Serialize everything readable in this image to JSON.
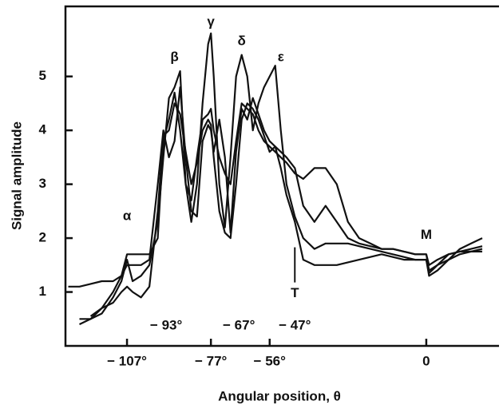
{
  "chart_data": {
    "type": "line",
    "x_label": "Angular position, θ",
    "y_label": "Signal amplitude",
    "x": [
      -128,
      -124,
      -120,
      -116,
      -112,
      -109,
      -107,
      -105,
      -102,
      -99,
      -96,
      -94,
      -92,
      -90,
      -88,
      -86,
      -84,
      -82,
      -80,
      -78,
      -77,
      -76,
      -74,
      -72,
      -70,
      -68,
      -66,
      -64,
      -62,
      -60,
      -58,
      -56,
      -54,
      -52,
      -50,
      -47,
      -44,
      -40,
      -36,
      -32,
      -28,
      -24,
      -20,
      -16,
      -12,
      -8,
      -4,
      -2,
      0,
      1,
      4,
      8,
      12,
      16,
      20
    ],
    "series": [
      {
        "color": "#111111",
        "values": [
          1.1,
          1.1,
          1.15,
          1.2,
          1.2,
          1.3,
          1.7,
          1.7,
          1.7,
          1.7,
          2.0,
          3.8,
          4.2,
          4.7,
          4.0,
          3.0,
          2.7,
          3.5,
          4.2,
          4.3,
          4.4,
          4.0,
          3.5,
          3.2,
          3.0,
          3.8,
          4.5,
          4.4,
          4.3,
          4.0,
          3.8,
          3.7,
          3.6,
          3.5,
          3.4,
          3.2,
          3.1,
          3.3,
          3.3,
          3.0,
          2.3,
          2.0,
          1.9,
          1.8,
          1.8,
          1.75,
          1.7,
          1.7,
          1.7,
          1.5,
          1.6,
          1.7,
          1.75,
          1.8,
          1.85
        ]
      },
      {
        "color": "#111111",
        "values": [
          null,
          0.5,
          0.5,
          0.6,
          0.9,
          1.2,
          1.6,
          1.2,
          1.3,
          1.5,
          2.3,
          3.5,
          4.6,
          4.8,
          5.1,
          3.0,
          2.3,
          3.0,
          4.5,
          5.6,
          5.8,
          5.0,
          3.0,
          2.2,
          3.5,
          5.0,
          5.4,
          5.0,
          4.0,
          4.5,
          4.8,
          5.0,
          5.2,
          4.0,
          3.0,
          2.4,
          2.0,
          1.8,
          1.9,
          1.9,
          1.9,
          1.85,
          1.8,
          1.75,
          1.7,
          1.65,
          1.6,
          1.6,
          1.6,
          1.3,
          1.4,
          1.6,
          1.8,
          1.9,
          2.0
        ]
      },
      {
        "color": "#111111",
        "values": [
          null,
          0.4,
          0.5,
          0.7,
          1.0,
          1.3,
          1.5,
          1.5,
          1.5,
          1.6,
          3.0,
          4.0,
          3.5,
          3.8,
          4.8,
          3.5,
          2.5,
          2.4,
          3.8,
          4.1,
          4.0,
          3.6,
          4.2,
          3.5,
          2.1,
          3.6,
          4.4,
          4.2,
          4.6,
          4.3,
          4.0,
          3.8,
          3.7,
          3.3,
          2.8,
          2.3,
          1.6,
          1.5,
          1.5,
          1.5,
          1.55,
          1.6,
          1.65,
          1.7,
          1.65,
          1.6,
          1.6,
          1.6,
          1.6,
          1.35,
          1.5,
          1.7,
          1.75,
          1.75,
          1.75
        ]
      },
      {
        "color": "#111111",
        "values": [
          null,
          null,
          0.55,
          0.7,
          0.8,
          1.0,
          1.1,
          1.0,
          0.9,
          1.1,
          2.5,
          3.9,
          4.0,
          4.5,
          4.3,
          3.6,
          3.0,
          3.4,
          4.0,
          4.2,
          4.1,
          3.5,
          2.5,
          2.1,
          2.0,
          3.0,
          4.2,
          4.5,
          4.4,
          4.2,
          3.9,
          3.6,
          3.7,
          3.6,
          3.5,
          3.3,
          2.6,
          2.3,
          2.6,
          2.3,
          2.0,
          1.9,
          1.85,
          1.8,
          1.8,
          1.75,
          1.7,
          1.7,
          1.7,
          1.4,
          1.5,
          1.6,
          1.7,
          1.75,
          1.8
        ]
      }
    ],
    "xlim": [
      -129,
      26
    ],
    "ylim": [
      0,
      6.3
    ],
    "xticks": [
      {
        "value": -107,
        "label": "− 107°"
      },
      {
        "value": -77,
        "label": "− 77°"
      },
      {
        "value": -56,
        "label": "− 56°"
      },
      0
    ],
    "yticks": [
      1,
      2,
      3,
      4,
      5
    ],
    "annotations": [
      {
        "text": "α",
        "x": -107,
        "y": 2.4
      },
      {
        "text": "β",
        "x": -90,
        "y": 5.35
      },
      {
        "text": "γ",
        "x": -77,
        "y": 6.0
      },
      {
        "text": "δ",
        "x": -66,
        "y": 5.65
      },
      {
        "text": "ε",
        "x": -52,
        "y": 5.35
      },
      {
        "text": "M",
        "x": 0,
        "y": 2.05
      },
      {
        "text": "T",
        "x": -47,
        "y": 0.97
      },
      {
        "text": "− 93°",
        "x": -93,
        "y": 0.37
      },
      {
        "text": "− 67°",
        "x": -67,
        "y": 0.37
      },
      {
        "text": "− 47°",
        "x": -47,
        "y": 0.37
      }
    ]
  }
}
